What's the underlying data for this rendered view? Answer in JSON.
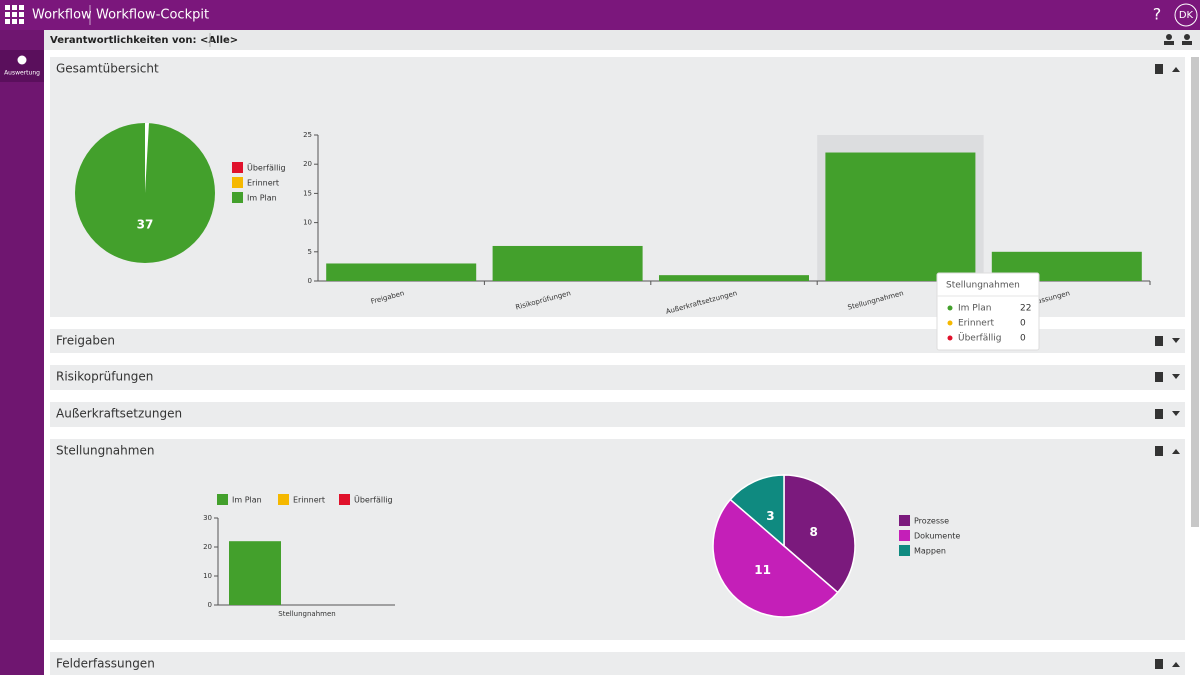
{
  "app": {
    "name": "Workflow",
    "title": "Workflow-Cockpit",
    "help": "?",
    "user": "DK"
  },
  "sidebar": {
    "items": [
      "Auswertung"
    ]
  },
  "toolbar": {
    "label": "Verantwortlichkeiten von: <Alle>"
  },
  "sections": [
    "Gesamtübersicht",
    "Freigaben",
    "Risikoprüfungen",
    "Außerkraftsetzungen",
    "Stellungnahmen",
    "Felderfassungen"
  ],
  "chart_data": [
    {
      "type": "pie",
      "series": [
        {
          "name": "Überfällig",
          "color": "#e0112b",
          "value": 0
        },
        {
          "name": "Erinnert",
          "color": "#f5b800",
          "value": 0
        },
        {
          "name": "Im Plan",
          "color": "#43a02c",
          "value": 37
        }
      ]
    },
    {
      "type": "bar",
      "categories": [
        "Freigaben",
        "Risikoprüfungen",
        "Außerkraftsetzungen",
        "Stellungnahmen",
        "Felderfassungen"
      ],
      "values": [
        3,
        6,
        1,
        22,
        5
      ],
      "color": "#43a02c",
      "ylim": [
        0,
        25
      ],
      "yticks": [
        0,
        5,
        10,
        15,
        20,
        25
      ],
      "tooltip": {
        "title": "Stellungnahmen",
        "rows": [
          {
            "label": "Im Plan",
            "value": 22,
            "color": "#43a02c"
          },
          {
            "label": "Erinnert",
            "value": 0,
            "color": "#f5b800"
          },
          {
            "label": "Überfällig",
            "value": 0,
            "color": "#e0112b"
          }
        ]
      }
    },
    {
      "type": "stacked_bar",
      "categories": [
        "Stellungnahmen"
      ],
      "series": [
        {
          "name": "Im Plan",
          "color": "#43a02c",
          "values": [
            22
          ]
        },
        {
          "name": "Erinnert",
          "color": "#f5b800",
          "values": [
            0
          ]
        },
        {
          "name": "Überfällig",
          "color": "#e0112b",
          "values": [
            0
          ]
        }
      ],
      "ylim": [
        0,
        30
      ],
      "yticks": [
        0,
        10,
        20,
        30
      ]
    },
    {
      "type": "pie",
      "series": [
        {
          "name": "Prozesse",
          "color": "#7b1a7d",
          "value": 8
        },
        {
          "name": "Dokumente",
          "color": "#c41fb8",
          "value": 11
        },
        {
          "name": "Mappen",
          "color": "#0f8a80",
          "value": 3
        }
      ]
    }
  ]
}
